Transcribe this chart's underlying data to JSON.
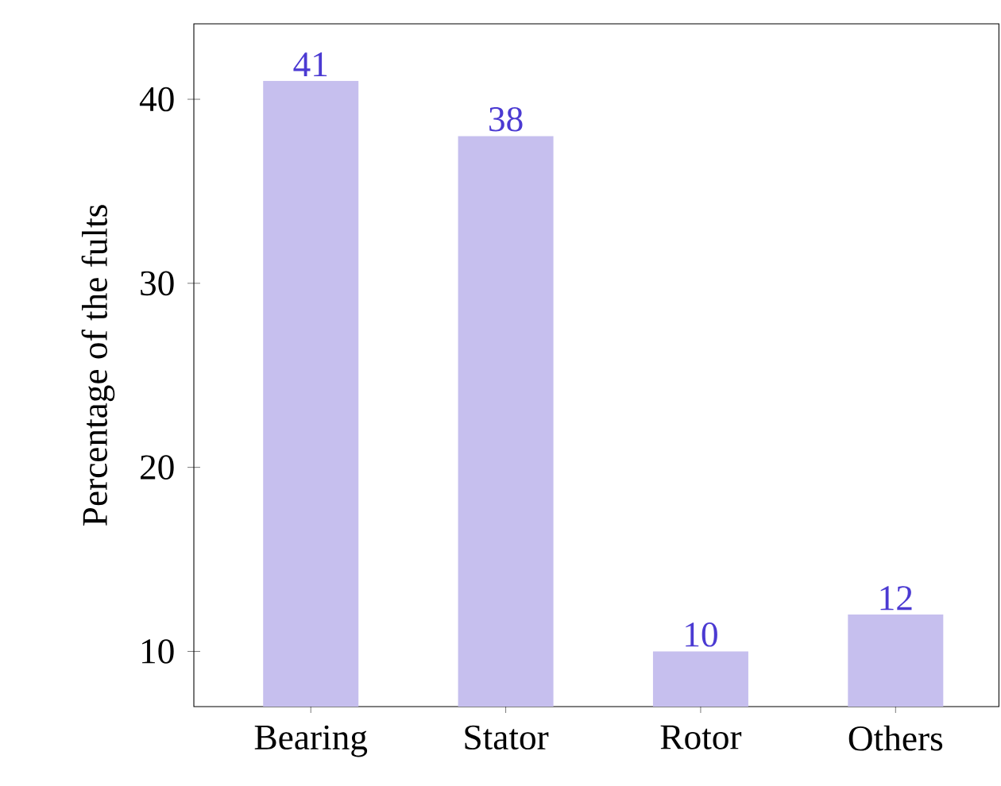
{
  "chart_data": {
    "type": "bar",
    "ylabel": "Percentage of the fults",
    "categories": [
      "Bearing",
      "Stator",
      "Rotor",
      "Others"
    ],
    "values": [
      41,
      38,
      10,
      12
    ],
    "color": "#c6bfee",
    "data_labels": true,
    "ylim": [
      7,
      44.1
    ],
    "yticks": [
      10,
      20,
      30,
      40
    ],
    "grid": false
  }
}
